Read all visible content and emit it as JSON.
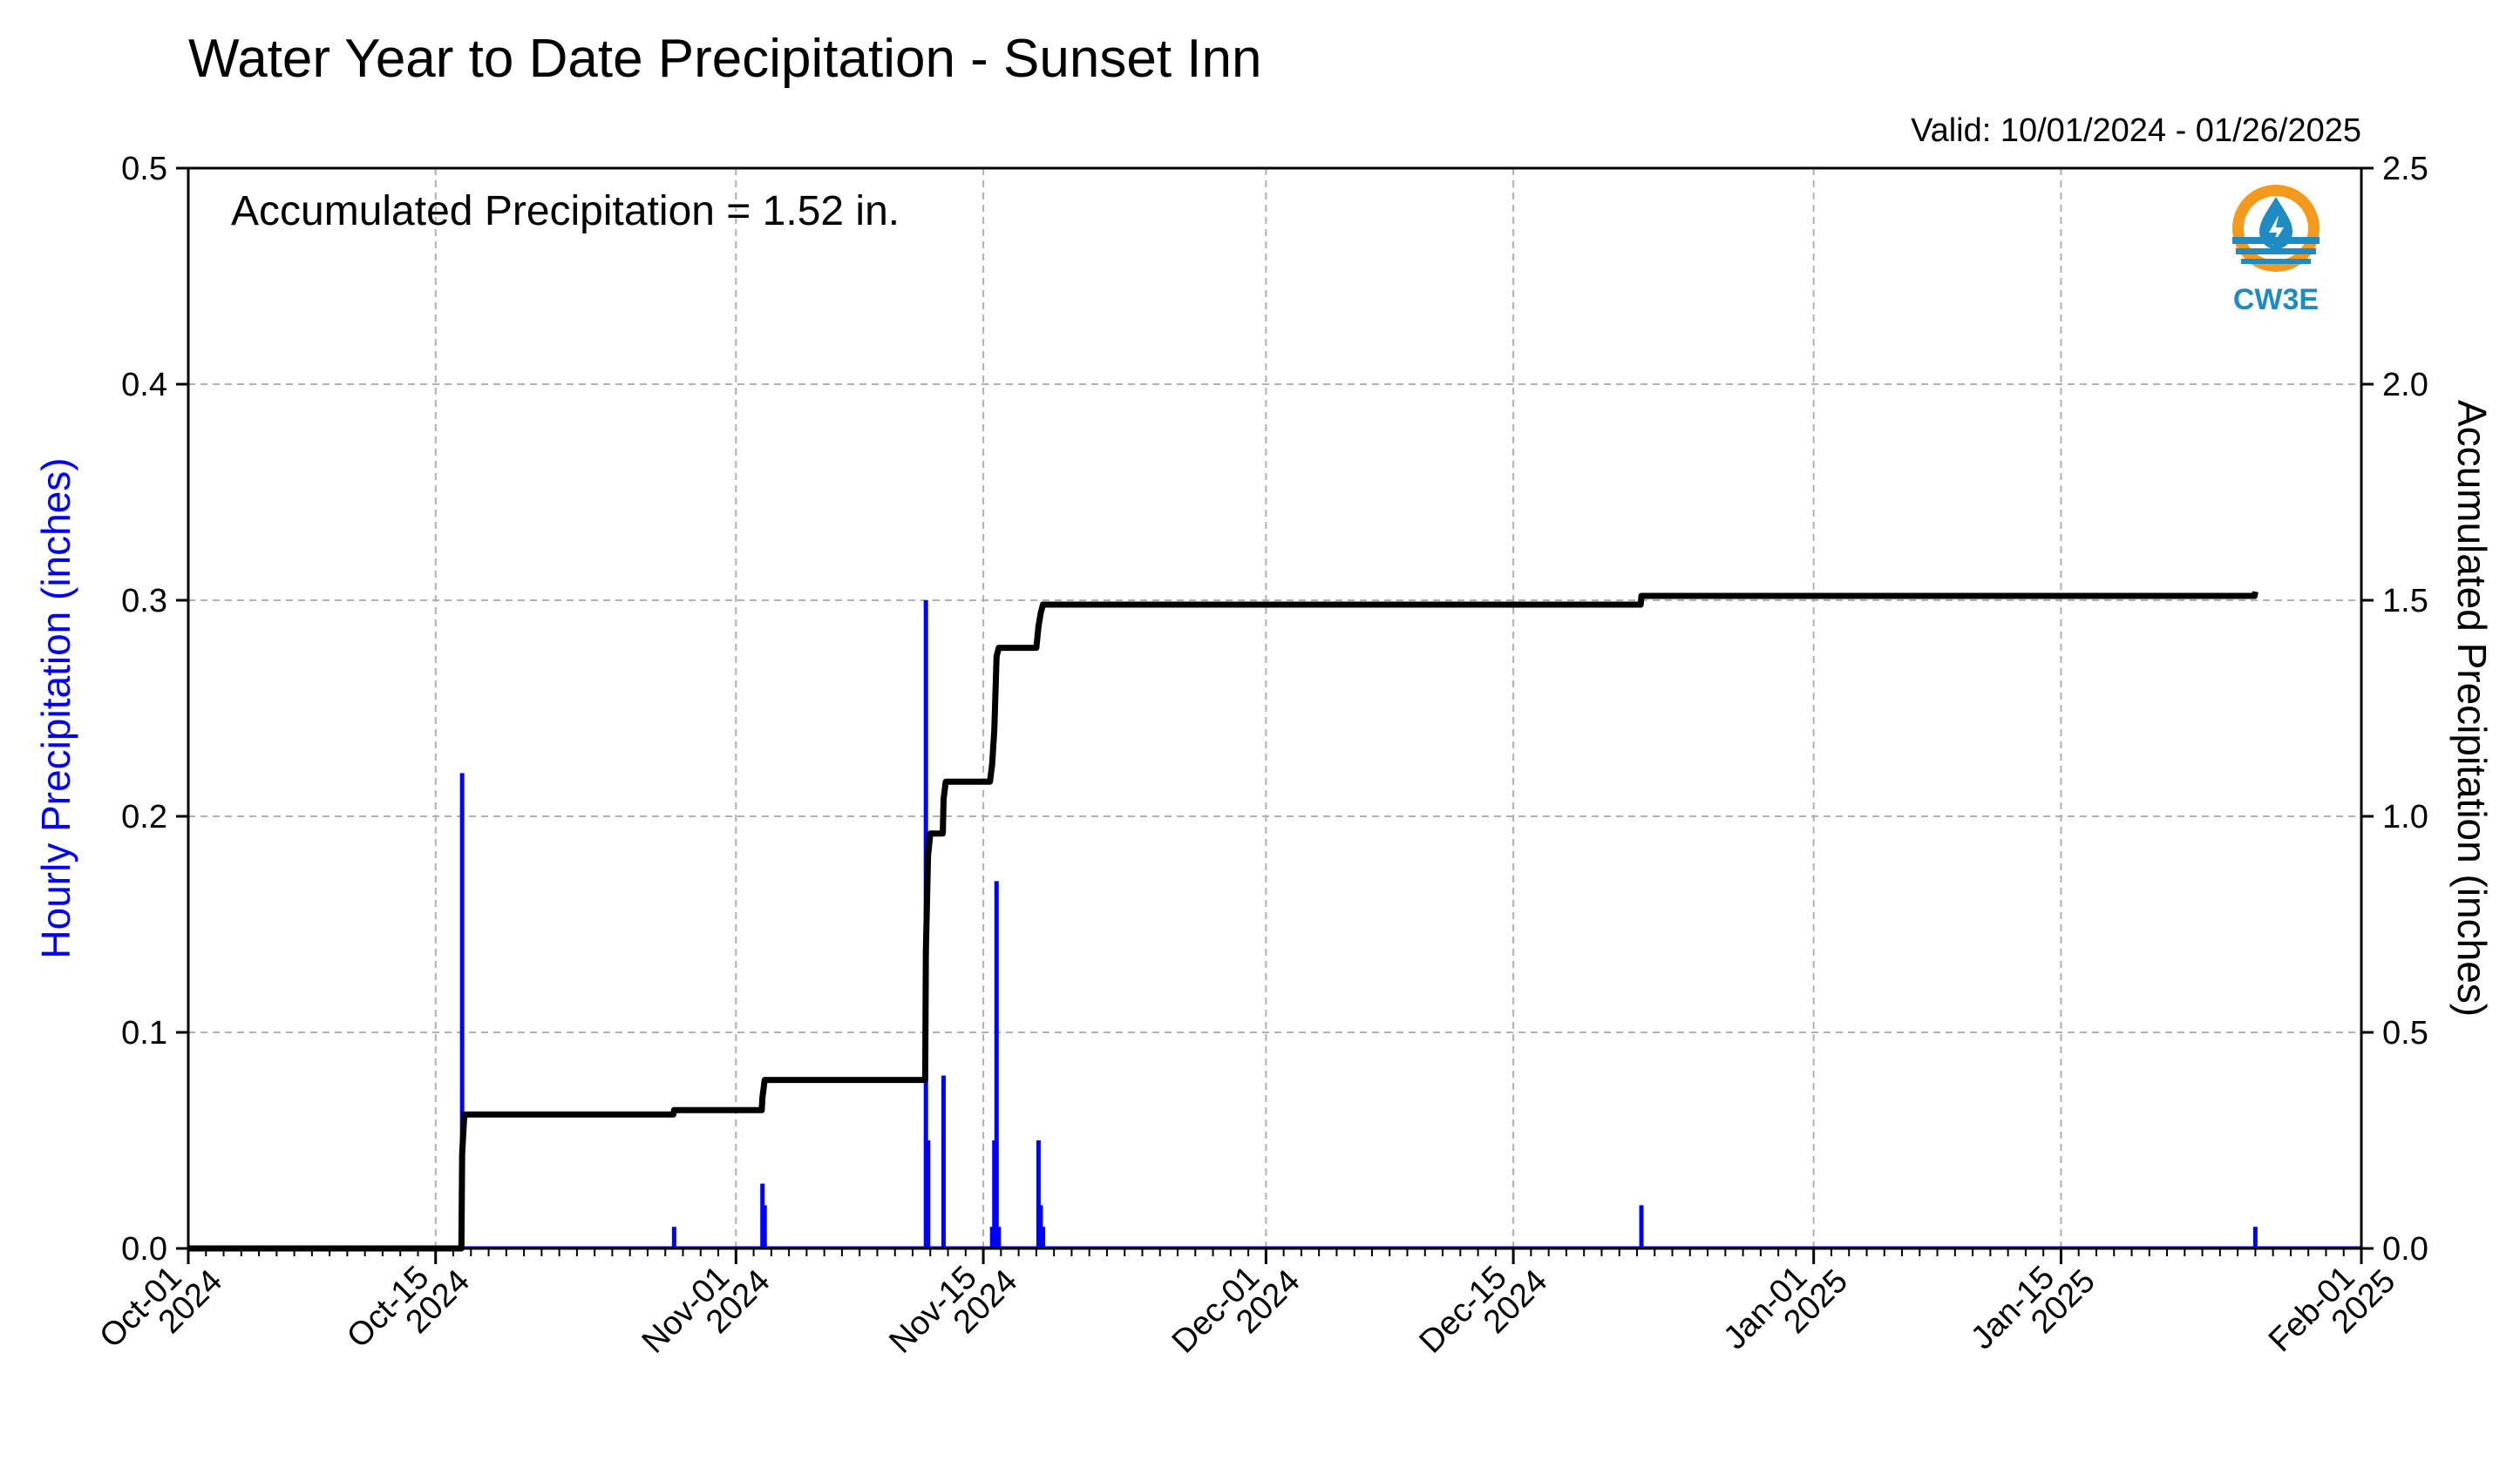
{
  "chart_data": {
    "type": "bar",
    "title": "Water Year to Date Precipitation - Sunset Inn",
    "valid_text": "Valid: 10/01/2024 - 01/26/2025",
    "annotation": "Accumulated Precipitation = 1.52 in.",
    "logo_text": "CW3E",
    "ylabel": "Hourly Precipitation (inches)",
    "y2label": "Accumulated Precipitation (inches)",
    "xlim": [
      "2024-10-01",
      "2025-02-01"
    ],
    "ylim": [
      0,
      0.5
    ],
    "y2lim": [
      0,
      2.5
    ],
    "y_ticks": [
      "0.0",
      "0.1",
      "0.2",
      "0.3",
      "0.4",
      "0.5"
    ],
    "y2_ticks": [
      "0.0",
      "0.5",
      "1.0",
      "1.5",
      "2.0",
      "2.5"
    ],
    "x_ticks": [
      {
        "date": "2024-10-01",
        "line1": "Oct-01",
        "line2": "2024"
      },
      {
        "date": "2024-10-15",
        "line1": "Oct-15",
        "line2": "2024"
      },
      {
        "date": "2024-11-01",
        "line1": "Nov-01",
        "line2": "2024"
      },
      {
        "date": "2024-11-15",
        "line1": "Nov-15",
        "line2": "2024"
      },
      {
        "date": "2024-12-01",
        "line1": "Dec-01",
        "line2": "2024"
      },
      {
        "date": "2024-12-15",
        "line1": "Dec-15",
        "line2": "2024"
      },
      {
        "date": "2025-01-01",
        "line1": "Jan-01",
        "line2": "2025"
      },
      {
        "date": "2025-01-15",
        "line1": "Jan-15",
        "line2": "2025"
      },
      {
        "date": "2025-02-01",
        "line1": "Feb-01",
        "line2": "2025"
      }
    ],
    "grid": true,
    "colors": {
      "hourly": "#0000ff",
      "accumulated": "#000000",
      "grid": "#b0b0b0"
    },
    "series": [
      {
        "name": "Hourly Precipitation",
        "type": "bar",
        "points": [
          {
            "x": "2024-10-16T12:00",
            "y": 0.22
          },
          {
            "x": "2024-10-28T12:00",
            "y": 0.01
          },
          {
            "x": "2024-11-02T12:00",
            "y": 0.03
          },
          {
            "x": "2024-11-02T15:00",
            "y": 0.02
          },
          {
            "x": "2024-11-11T18:00",
            "y": 0.3
          },
          {
            "x": "2024-11-11T21:00",
            "y": 0.05
          },
          {
            "x": "2024-11-12T18:00",
            "y": 0.08
          },
          {
            "x": "2024-11-15T12:00",
            "y": 0.01
          },
          {
            "x": "2024-11-15T15:00",
            "y": 0.05
          },
          {
            "x": "2024-11-15T18:00",
            "y": 0.17
          },
          {
            "x": "2024-11-15T21:00",
            "y": 0.01
          },
          {
            "x": "2024-11-18T03:00",
            "y": 0.05
          },
          {
            "x": "2024-11-18T06:00",
            "y": 0.02
          },
          {
            "x": "2024-11-18T09:00",
            "y": 0.01
          },
          {
            "x": "2024-12-22T06:00",
            "y": 0.02
          },
          {
            "x": "2025-01-26T00:00",
            "y": 0.01
          }
        ]
      },
      {
        "name": "Accumulated Precipitation",
        "type": "line",
        "points": [
          {
            "x": "2024-10-01T00:00",
            "y": 0.0
          },
          {
            "x": "2024-10-16T11:00",
            "y": 0.0
          },
          {
            "x": "2024-10-16T12:00",
            "y": 0.22
          },
          {
            "x": "2024-10-16T15:00",
            "y": 0.31
          },
          {
            "x": "2024-10-28T11:00",
            "y": 0.31
          },
          {
            "x": "2024-10-28T12:00",
            "y": 0.32
          },
          {
            "x": "2024-11-02T11:00",
            "y": 0.32
          },
          {
            "x": "2024-11-02T12:00",
            "y": 0.35
          },
          {
            "x": "2024-11-02T15:00",
            "y": 0.39
          },
          {
            "x": "2024-11-11T17:00",
            "y": 0.39
          },
          {
            "x": "2024-11-11T18:00",
            "y": 0.69
          },
          {
            "x": "2024-11-11T21:00",
            "y": 0.91
          },
          {
            "x": "2024-11-12T00:00",
            "y": 0.96
          },
          {
            "x": "2024-11-12T17:00",
            "y": 0.96
          },
          {
            "x": "2024-11-12T18:00",
            "y": 1.04
          },
          {
            "x": "2024-11-12T21:00",
            "y": 1.08
          },
          {
            "x": "2024-11-15T09:00",
            "y": 1.08
          },
          {
            "x": "2024-11-15T12:00",
            "y": 1.12
          },
          {
            "x": "2024-11-15T15:00",
            "y": 1.2
          },
          {
            "x": "2024-11-15T18:00",
            "y": 1.37
          },
          {
            "x": "2024-11-15T21:00",
            "y": 1.39
          },
          {
            "x": "2024-11-18T00:00",
            "y": 1.39
          },
          {
            "x": "2024-11-18T03:00",
            "y": 1.44
          },
          {
            "x": "2024-11-18T06:00",
            "y": 1.47
          },
          {
            "x": "2024-11-18T09:00",
            "y": 1.49
          },
          {
            "x": "2024-12-22T05:00",
            "y": 1.49
          },
          {
            "x": "2024-12-22T06:00",
            "y": 1.51
          },
          {
            "x": "2025-01-25T23:00",
            "y": 1.51
          },
          {
            "x": "2025-01-26T00:00",
            "y": 1.52
          }
        ]
      }
    ]
  }
}
